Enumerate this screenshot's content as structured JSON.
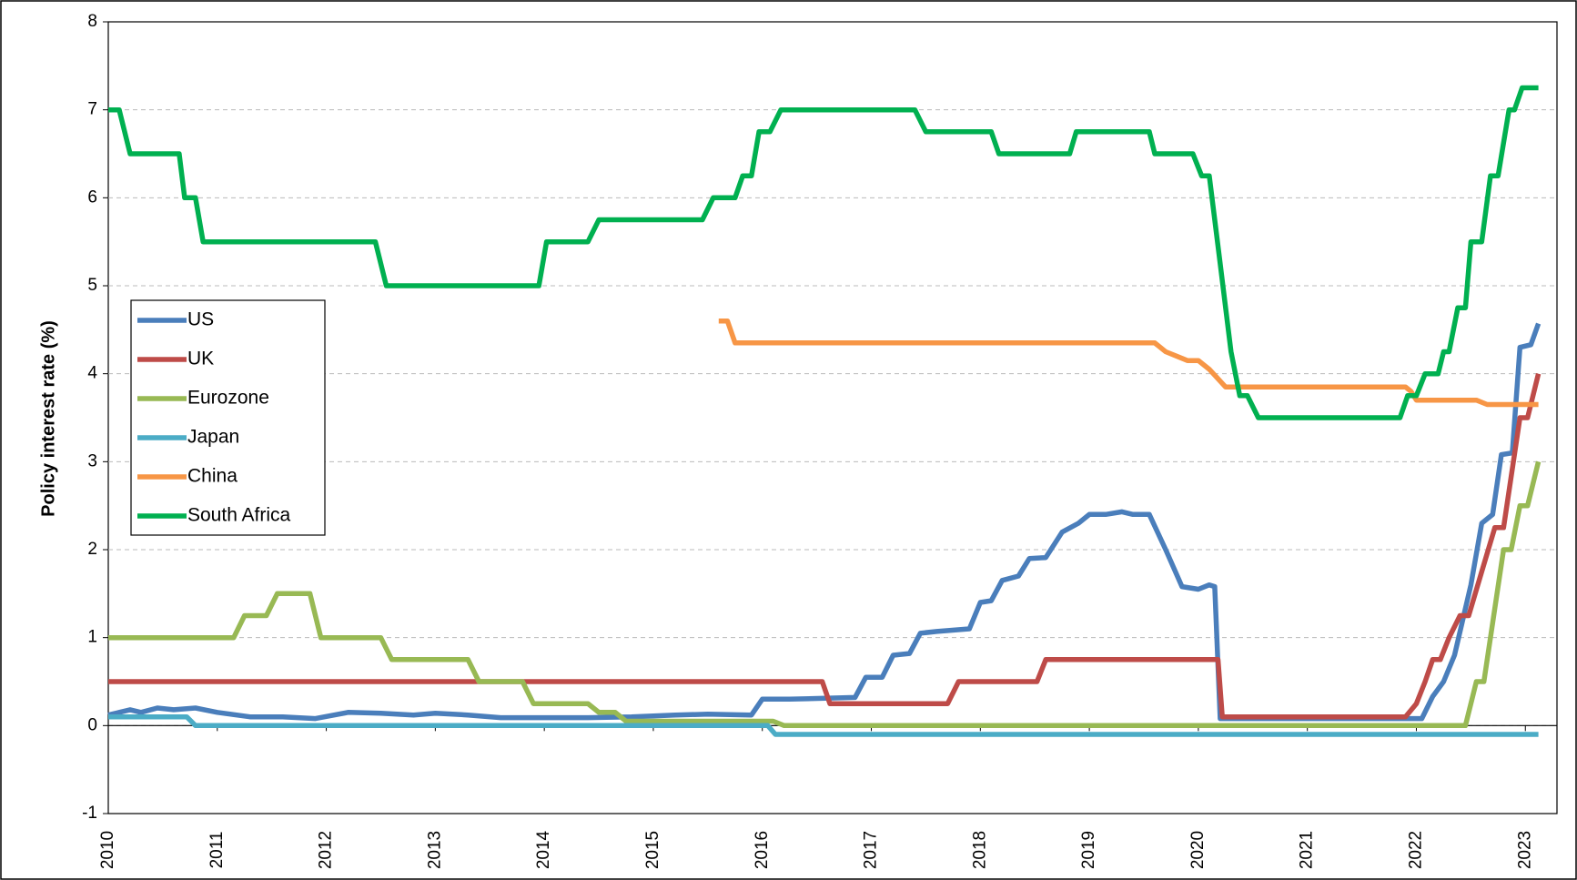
{
  "chart_data": {
    "type": "line",
    "y_label": "Policy interest rate (%)",
    "xlim": [
      2010,
      2023.29
    ],
    "ylim": [
      -1,
      8
    ],
    "xticks": [
      2010,
      2011,
      2012,
      2013,
      2014,
      2015,
      2016,
      2017,
      2018,
      2019,
      2020,
      2021,
      2022,
      2023
    ],
    "yticks": [
      -1,
      0,
      1,
      2,
      3,
      4,
      5,
      6,
      7,
      8
    ],
    "grid": true,
    "legend": "left",
    "series": [
      {
        "name": "US",
        "color": "#4a7ebb",
        "x": [
          2010,
          2010.1,
          2010.2,
          2010.3,
          2010.45,
          2010.6,
          2010.8,
          2011.0,
          2011.3,
          2011.6,
          2011.9,
          2012.2,
          2012.5,
          2012.8,
          2013.0,
          2013.3,
          2013.6,
          2014.0,
          2014.4,
          2014.8,
          2015.2,
          2015.5,
          2015.9,
          2016.0,
          2016.15,
          2016.25,
          2016.85,
          2016.95,
          2017.1,
          2017.2,
          2017.35,
          2017.45,
          2017.6,
          2017.9,
          2018.0,
          2018.1,
          2018.2,
          2018.35,
          2018.45,
          2018.6,
          2018.75,
          2018.9,
          2019.0,
          2019.15,
          2019.3,
          2019.4,
          2019.55,
          2019.7,
          2019.85,
          2020.0,
          2020.1,
          2020.15,
          2020.2,
          2021.9,
          2022.05,
          2022.15,
          2022.25,
          2022.35,
          2022.5,
          2022.6,
          2022.7,
          2022.78,
          2022.88,
          2022.95,
          2023.05,
          2023.12
        ],
        "values": [
          0.12,
          0.15,
          0.18,
          0.15,
          0.2,
          0.18,
          0.2,
          0.15,
          0.1,
          0.1,
          0.08,
          0.15,
          0.14,
          0.12,
          0.14,
          0.12,
          0.09,
          0.09,
          0.09,
          0.1,
          0.12,
          0.13,
          0.12,
          0.3,
          0.3,
          0.3,
          0.32,
          0.55,
          0.55,
          0.8,
          0.82,
          1.05,
          1.07,
          1.1,
          1.4,
          1.42,
          1.65,
          1.7,
          1.9,
          1.91,
          2.2,
          2.3,
          2.4,
          2.4,
          2.43,
          2.4,
          2.4,
          2.0,
          1.58,
          1.55,
          1.6,
          1.58,
          0.08,
          0.08,
          0.08,
          0.33,
          0.5,
          0.8,
          1.6,
          2.3,
          2.4,
          3.08,
          3.1,
          4.3,
          4.33,
          4.57
        ]
      },
      {
        "name": "UK",
        "color": "#be4b48",
        "x": [
          2010,
          2016.55,
          2016.62,
          2017.7,
          2017.8,
          2018.52,
          2018.6,
          2020.18,
          2020.22,
          2021.9,
          2022.0,
          2022.08,
          2022.15,
          2022.22,
          2022.3,
          2022.4,
          2022.48,
          2022.6,
          2022.72,
          2022.8,
          2022.95,
          2023.02,
          2023.12
        ],
        "values": [
          0.5,
          0.5,
          0.25,
          0.25,
          0.5,
          0.5,
          0.75,
          0.75,
          0.1,
          0.1,
          0.25,
          0.5,
          0.75,
          0.75,
          1.0,
          1.25,
          1.25,
          1.75,
          2.25,
          2.25,
          3.5,
          3.5,
          4.0
        ]
      },
      {
        "name": "Eurozone",
        "color": "#98b954",
        "x": [
          2010,
          2011.15,
          2011.25,
          2011.45,
          2011.55,
          2011.85,
          2011.95,
          2012.5,
          2012.6,
          2013.3,
          2013.4,
          2013.8,
          2013.9,
          2014.4,
          2014.5,
          2014.65,
          2014.75,
          2016.1,
          2016.2,
          2022.45,
          2022.55,
          2022.62,
          2022.8,
          2022.87,
          2022.95,
          2023.02,
          2023.12
        ],
        "values": [
          1.0,
          1.0,
          1.25,
          1.25,
          1.5,
          1.5,
          1.0,
          1.0,
          0.75,
          0.75,
          0.5,
          0.5,
          0.25,
          0.25,
          0.15,
          0.15,
          0.05,
          0.05,
          0.0,
          0.0,
          0.5,
          0.5,
          2.0,
          2.0,
          2.5,
          2.5,
          3.0
        ]
      },
      {
        "name": "Japan",
        "color": "#4bacc6",
        "x": [
          2010,
          2010.72,
          2010.8,
          2016.05,
          2016.12,
          2023.12
        ],
        "values": [
          0.1,
          0.1,
          0.0,
          0.0,
          -0.1,
          -0.1
        ]
      },
      {
        "name": "China",
        "color": "#f79646",
        "x": [
          2015.6,
          2015.68,
          2015.75,
          2019.6,
          2019.7,
          2019.8,
          2019.9,
          2020.0,
          2020.1,
          2020.25,
          2021.9,
          2021.95,
          2022.0,
          2022.55,
          2022.65,
          2023.12
        ],
        "values": [
          4.6,
          4.6,
          4.35,
          4.35,
          4.25,
          4.2,
          4.15,
          4.15,
          4.05,
          3.85,
          3.85,
          3.8,
          3.7,
          3.7,
          3.65,
          3.65
        ]
      },
      {
        "name": "South Africa",
        "color": "#00b050",
        "x": [
          2010,
          2010.1,
          2010.2,
          2010.65,
          2010.7,
          2010.8,
          2010.87,
          2012.45,
          2012.55,
          2013.95,
          2014.02,
          2014.4,
          2014.5,
          2015.45,
          2015.55,
          2015.75,
          2015.82,
          2015.9,
          2015.97,
          2016.07,
          2016.17,
          2017.4,
          2017.5,
          2018.1,
          2018.17,
          2018.82,
          2018.88,
          2019.55,
          2019.6,
          2019.95,
          2020.03,
          2020.1,
          2020.2,
          2020.3,
          2020.38,
          2020.45,
          2020.55,
          2021.85,
          2021.92,
          2022.0,
          2022.08,
          2022.2,
          2022.25,
          2022.3,
          2022.38,
          2022.45,
          2022.5,
          2022.6,
          2022.68,
          2022.75,
          2022.85,
          2022.9,
          2022.97,
          2023.12
        ],
        "values": [
          7.0,
          7.0,
          6.5,
          6.5,
          6.0,
          6.0,
          5.5,
          5.5,
          5.0,
          5.0,
          5.5,
          5.5,
          5.75,
          5.75,
          6.0,
          6.0,
          6.25,
          6.25,
          6.75,
          6.75,
          7.0,
          7.0,
          6.75,
          6.75,
          6.5,
          6.5,
          6.75,
          6.75,
          6.5,
          6.5,
          6.25,
          6.25,
          5.25,
          4.25,
          3.75,
          3.75,
          3.5,
          3.5,
          3.75,
          3.75,
          4.0,
          4.0,
          4.25,
          4.25,
          4.75,
          4.75,
          5.5,
          5.5,
          6.25,
          6.25,
          7.0,
          7.0,
          7.25,
          7.25
        ]
      }
    ]
  }
}
